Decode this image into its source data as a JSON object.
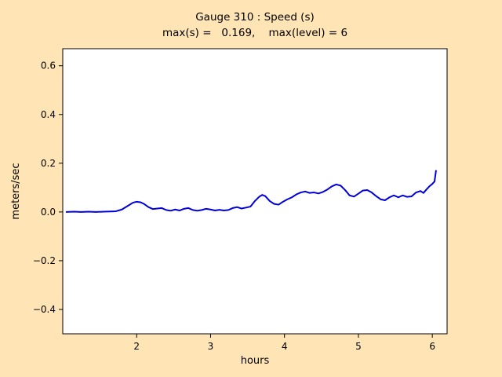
{
  "figure": {
    "background_color": "#ffe4b5",
    "plot_background": "#ffffff",
    "axis_color": "#000000",
    "tick_font_size": 12,
    "label_font_size": 13,
    "title_font_size": 13.5
  },
  "chart_data": {
    "type": "line",
    "title": "Gauge 310 : Speed (s)",
    "subtitle": "max(s) =   0.169,    max(level) = 6",
    "xlabel": "hours",
    "ylabel": "meters/sec",
    "xlim": [
      1.0,
      6.2
    ],
    "ylim": [
      -0.5,
      0.67
    ],
    "xticks": [
      2,
      3,
      4,
      5,
      6
    ],
    "yticks": [
      -0.4,
      -0.2,
      0.0,
      0.2,
      0.4,
      0.6
    ],
    "grid": false,
    "legend": "none",
    "stats": {
      "max_s": 0.169,
      "max_level": 6
    },
    "series": [
      {
        "name": "speed",
        "color": "#0000dd",
        "line_width": 2,
        "x": [
          1.05,
          1.15,
          1.25,
          1.35,
          1.45,
          1.55,
          1.65,
          1.72,
          1.8,
          1.88,
          1.95,
          2.0,
          2.05,
          2.1,
          2.16,
          2.22,
          2.28,
          2.34,
          2.4,
          2.46,
          2.52,
          2.58,
          2.64,
          2.7,
          2.76,
          2.82,
          2.88,
          2.94,
          3.0,
          3.06,
          3.12,
          3.18,
          3.24,
          3.3,
          3.36,
          3.42,
          3.48,
          3.54,
          3.6,
          3.66,
          3.7,
          3.74,
          3.8,
          3.86,
          3.92,
          3.98,
          4.04,
          4.1,
          4.16,
          4.22,
          4.28,
          4.34,
          4.4,
          4.46,
          4.52,
          4.58,
          4.64,
          4.7,
          4.76,
          4.82,
          4.88,
          4.94,
          5.0,
          5.06,
          5.12,
          5.18,
          5.24,
          5.3,
          5.36,
          5.42,
          5.48,
          5.54,
          5.6,
          5.66,
          5.72,
          5.78,
          5.84,
          5.88,
          5.92,
          5.96,
          6.0,
          6.03,
          6.05
        ],
        "y": [
          0.0,
          0.001,
          0.0,
          0.001,
          0.0,
          0.001,
          0.002,
          0.003,
          0.01,
          0.025,
          0.038,
          0.042,
          0.04,
          0.033,
          0.02,
          0.012,
          0.014,
          0.016,
          0.008,
          0.005,
          0.01,
          0.006,
          0.013,
          0.016,
          0.008,
          0.005,
          0.008,
          0.013,
          0.01,
          0.006,
          0.009,
          0.006,
          0.008,
          0.016,
          0.02,
          0.014,
          0.018,
          0.022,
          0.045,
          0.063,
          0.07,
          0.065,
          0.045,
          0.033,
          0.03,
          0.042,
          0.052,
          0.06,
          0.072,
          0.08,
          0.084,
          0.078,
          0.08,
          0.076,
          0.082,
          0.092,
          0.105,
          0.113,
          0.108,
          0.09,
          0.068,
          0.063,
          0.075,
          0.088,
          0.09,
          0.08,
          0.065,
          0.052,
          0.048,
          0.06,
          0.068,
          0.06,
          0.068,
          0.062,
          0.064,
          0.08,
          0.086,
          0.078,
          0.092,
          0.105,
          0.115,
          0.125,
          0.169
        ]
      }
    ]
  }
}
